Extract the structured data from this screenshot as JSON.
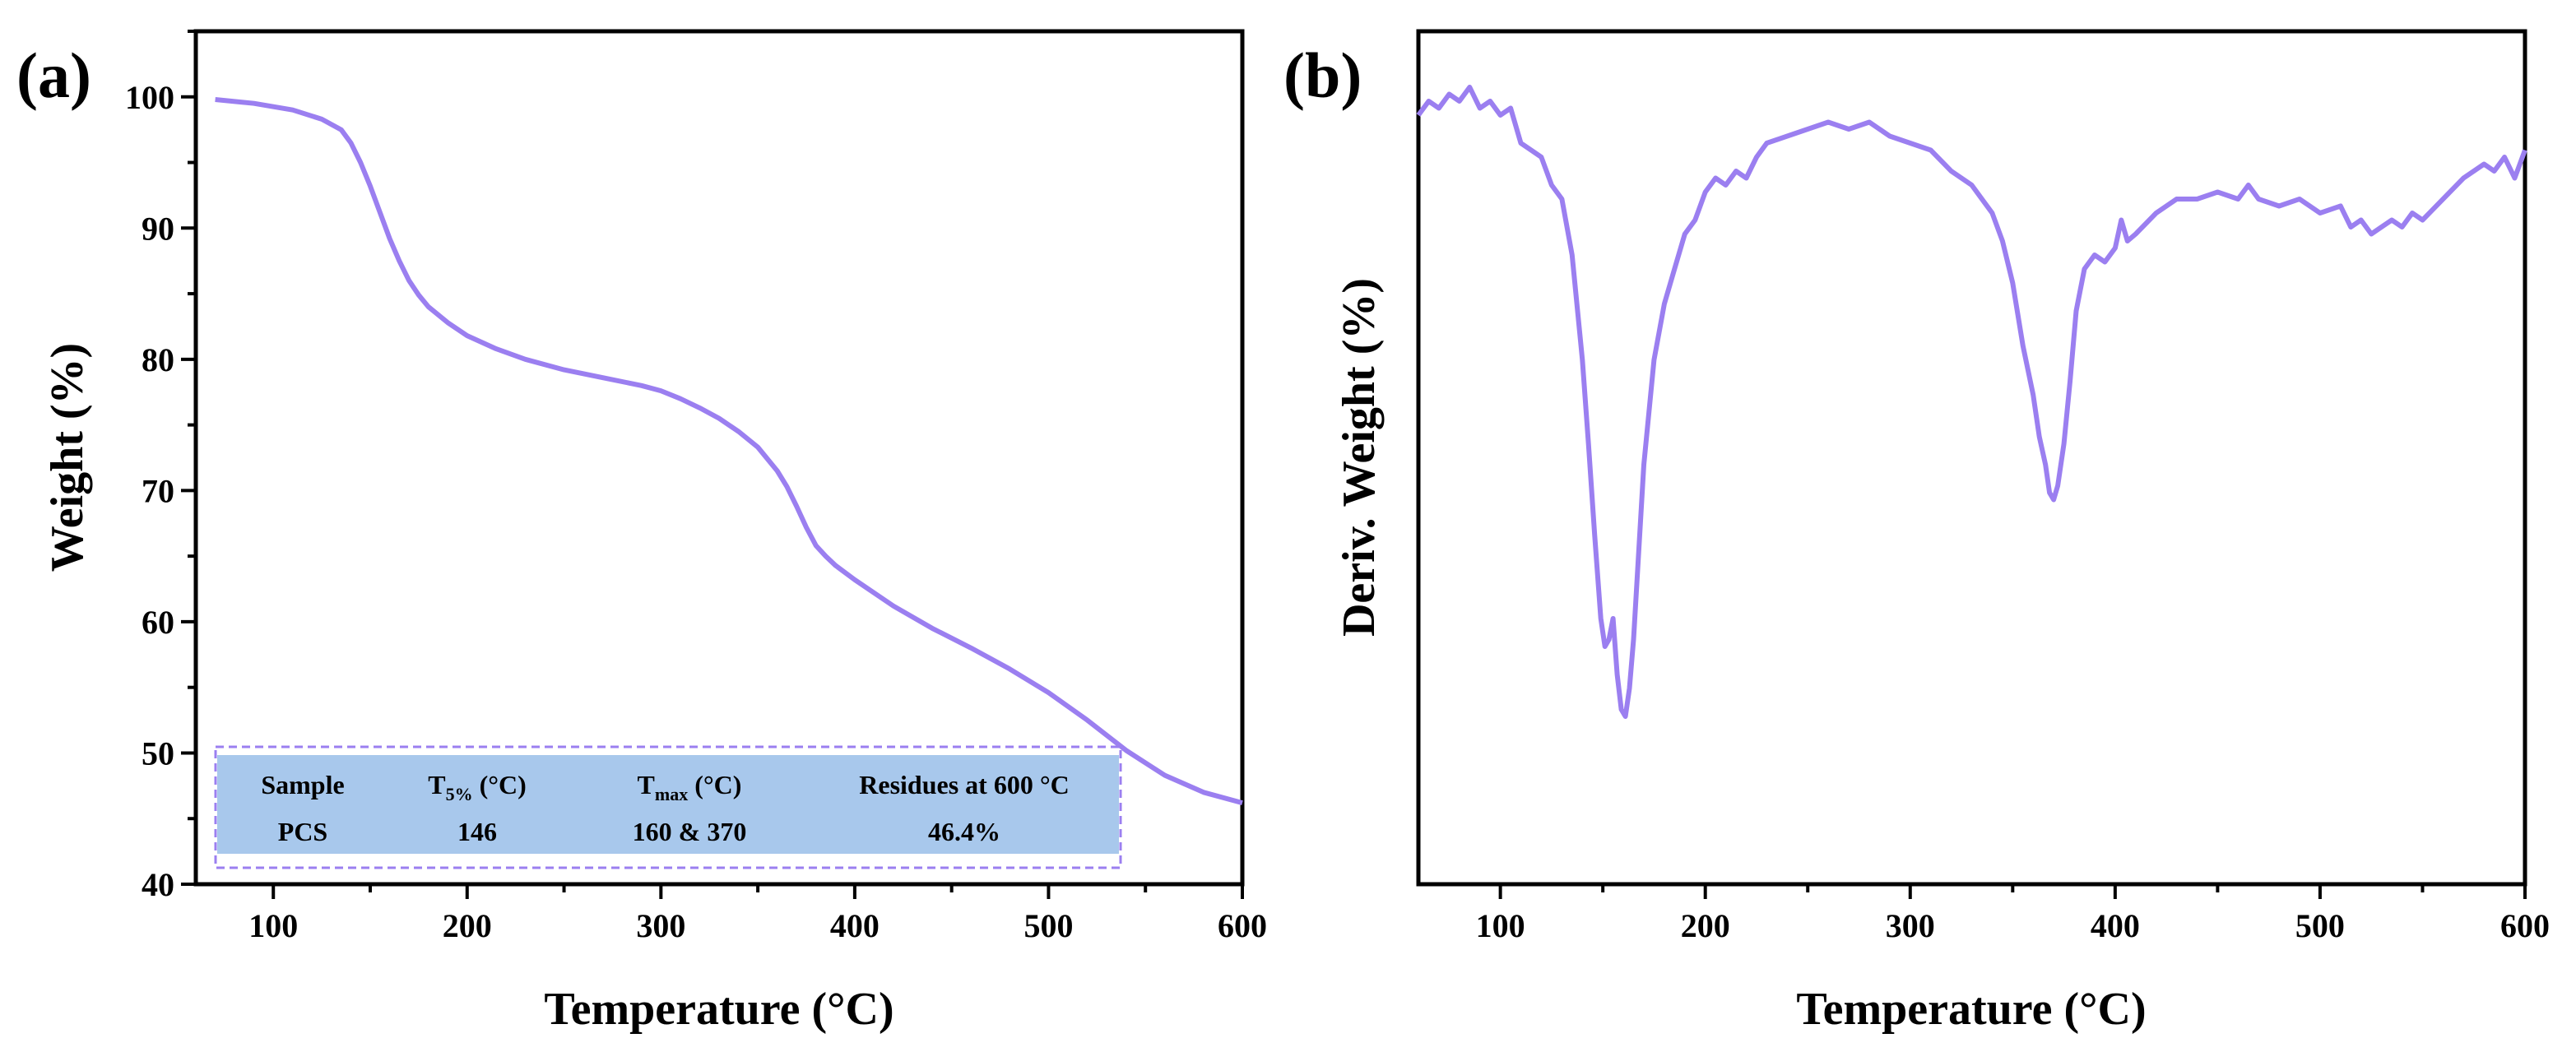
{
  "chart_data": [
    {
      "type": "line",
      "panel_label": "(a)",
      "xlabel": "Temperature (°C)",
      "ylabel": "Weight (%)",
      "xlim": [
        60,
        600
      ],
      "ylim": [
        40,
        105
      ],
      "xticks": [
        100,
        200,
        300,
        400,
        500,
        600
      ],
      "yticks": [
        40,
        50,
        60,
        70,
        80,
        90,
        100
      ],
      "grid": false,
      "color": "#9b7ff0",
      "series": [
        {
          "x": [
            70,
            90,
            110,
            125,
            135,
            140,
            145,
            150,
            155,
            160,
            165,
            170,
            175,
            180,
            190,
            200,
            215,
            230,
            250,
            270,
            290,
            300,
            310,
            320,
            330,
            340,
            350,
            360,
            365,
            370,
            375,
            380,
            385,
            390,
            400,
            420,
            440,
            460,
            480,
            500,
            520,
            540,
            560,
            580,
            600
          ],
          "y": [
            99.8,
            99.5,
            99.0,
            98.3,
            97.5,
            96.5,
            95.0,
            93.2,
            91.2,
            89.2,
            87.5,
            86.0,
            84.9,
            84.0,
            82.8,
            81.8,
            80.8,
            80.0,
            79.2,
            78.6,
            78.0,
            77.6,
            77.0,
            76.3,
            75.5,
            74.5,
            73.3,
            71.5,
            70.3,
            68.8,
            67.2,
            65.8,
            65.0,
            64.3,
            63.2,
            61.2,
            59.5,
            58.0,
            56.4,
            54.6,
            52.5,
            50.2,
            48.3,
            47.0,
            46.2
          ]
        }
      ],
      "table": {
        "headers": [
          {
            "main": "Sample",
            "sub": "",
            "suffix": ""
          },
          {
            "main": "T",
            "sub": "5%",
            "suffix": " (°C)"
          },
          {
            "main": "T",
            "sub": "max",
            "suffix": " (°C)"
          },
          {
            "main": "Residues at 600 °C",
            "sub": "",
            "suffix": ""
          }
        ],
        "rows": [
          [
            "PCS",
            "146",
            "160 & 370",
            "46.4%"
          ]
        ],
        "fill": "#a8c8ec",
        "border": "#9b7ff0"
      }
    },
    {
      "type": "line",
      "panel_label": "(b)",
      "xlabel": "Temperature (°C)",
      "ylabel": "Deriv. Weight (%)",
      "xlim": [
        60,
        600
      ],
      "ylim": [
        -1.1,
        0.12
      ],
      "xticks": [
        100,
        200,
        300,
        400,
        500,
        600
      ],
      "yticks": [],
      "grid": false,
      "color": "#9b7ff0",
      "series": [
        {
          "x": [
            60,
            65,
            70,
            75,
            80,
            85,
            90,
            95,
            100,
            105,
            110,
            115,
            120,
            125,
            130,
            135,
            140,
            143,
            146,
            149,
            151,
            153,
            155,
            157,
            159,
            161,
            163,
            165,
            167,
            170,
            175,
            180,
            185,
            190,
            195,
            200,
            205,
            210,
            215,
            220,
            225,
            230,
            240,
            250,
            260,
            270,
            280,
            290,
            300,
            310,
            320,
            330,
            340,
            345,
            350,
            355,
            360,
            363,
            366,
            368,
            370,
            372,
            375,
            378,
            381,
            385,
            390,
            395,
            400,
            403,
            406,
            410,
            420,
            430,
            440,
            450,
            460,
            465,
            470,
            480,
            490,
            500,
            510,
            515,
            520,
            525,
            530,
            535,
            540,
            545,
            550,
            560,
            570,
            580,
            585,
            590,
            595,
            600
          ],
          "y": [
            0.0,
            0.02,
            0.01,
            0.03,
            0.02,
            0.04,
            0.01,
            0.02,
            0.0,
            0.01,
            -0.04,
            -0.05,
            -0.06,
            -0.1,
            -0.12,
            -0.2,
            -0.35,
            -0.47,
            -0.6,
            -0.72,
            -0.76,
            -0.75,
            -0.72,
            -0.8,
            -0.85,
            -0.86,
            -0.82,
            -0.75,
            -0.65,
            -0.5,
            -0.35,
            -0.27,
            -0.22,
            -0.17,
            -0.15,
            -0.11,
            -0.09,
            -0.1,
            -0.08,
            -0.09,
            -0.06,
            -0.04,
            -0.03,
            -0.02,
            -0.01,
            -0.02,
            -0.01,
            -0.03,
            -0.04,
            -0.05,
            -0.08,
            -0.1,
            -0.14,
            -0.18,
            -0.24,
            -0.33,
            -0.4,
            -0.46,
            -0.5,
            -0.54,
            -0.55,
            -0.53,
            -0.47,
            -0.38,
            -0.28,
            -0.22,
            -0.2,
            -0.21,
            -0.19,
            -0.15,
            -0.18,
            -0.17,
            -0.14,
            -0.12,
            -0.12,
            -0.11,
            -0.12,
            -0.1,
            -0.12,
            -0.13,
            -0.12,
            -0.14,
            -0.13,
            -0.16,
            -0.15,
            -0.17,
            -0.16,
            -0.15,
            -0.16,
            -0.14,
            -0.15,
            -0.12,
            -0.09,
            -0.07,
            -0.08,
            -0.06,
            -0.09,
            -0.05
          ]
        }
      ]
    }
  ]
}
